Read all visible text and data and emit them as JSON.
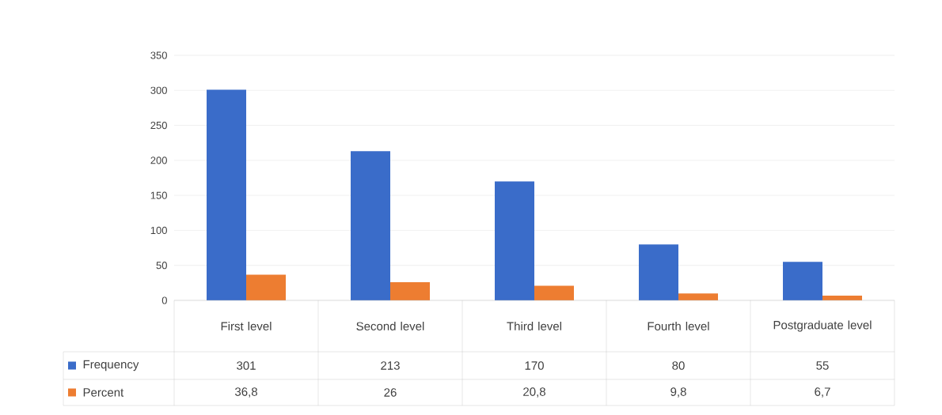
{
  "chart_data": {
    "type": "bar",
    "categories": [
      "First level",
      "Second level",
      "Third level",
      "Fourth level",
      "Postgraduate level"
    ],
    "series": [
      {
        "name": "Frequency",
        "color": "#3a6cc9",
        "values": [
          301,
          213,
          170,
          80,
          55
        ],
        "value_labels": [
          "301",
          "213",
          "170",
          "80",
          "55"
        ]
      },
      {
        "name": "Percent",
        "color": "#ed7d31",
        "values": [
          36.8,
          26,
          20.8,
          9.8,
          6.7
        ],
        "value_labels": [
          "36,8",
          "26",
          "20,8",
          "9,8",
          "6,7"
        ]
      }
    ],
    "ylim": [
      0,
      350
    ],
    "yticks": [
      0,
      50,
      100,
      150,
      200,
      250,
      300,
      350
    ],
    "grid": "y",
    "legend": "bottom"
  }
}
